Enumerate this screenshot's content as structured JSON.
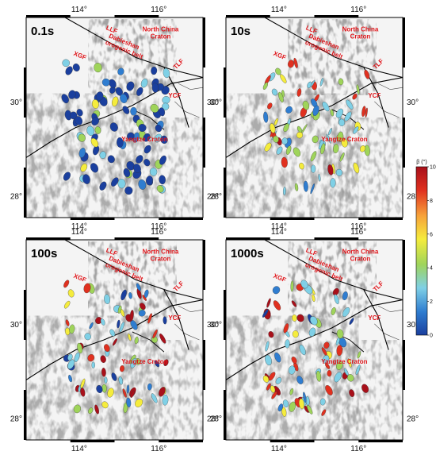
{
  "panels": [
    {
      "id": "p1",
      "period": "0.1s"
    },
    {
      "id": "p2",
      "period": "10s"
    },
    {
      "id": "p3",
      "period": "100s"
    },
    {
      "id": "p4",
      "period": "1000s"
    }
  ],
  "lon_ticks": [
    "114°",
    "116°"
  ],
  "lat_ticks": [
    "30°",
    "28°"
  ],
  "labels": {
    "llf": "LLF",
    "ncc_line1": "North China",
    "ncc_line2": "Craton",
    "dabie_line1": "Dabieshan",
    "dabie_line2": "orogenic belt",
    "xgf": "XGF",
    "tlf": "TLF",
    "ycf": "YCF",
    "yangtze": "Yangtze Craton"
  },
  "colorbar": {
    "title": "β (°)",
    "ticks": [
      "10",
      "8",
      "6",
      "4",
      "2",
      "0"
    ],
    "min": 0,
    "max": 10,
    "colors": [
      "#1a3f9e",
      "#2f7dd0",
      "#7fd0e6",
      "#9fd45a",
      "#f5ec3c",
      "#f7a23a",
      "#e0301f",
      "#a8101a"
    ]
  }
}
